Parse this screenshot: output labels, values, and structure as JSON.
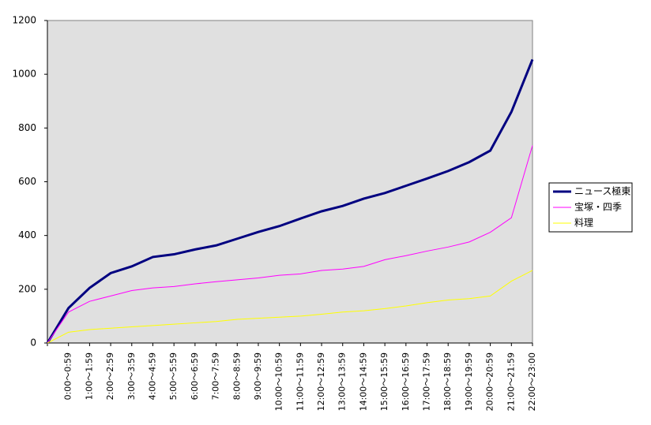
{
  "chart_data": {
    "type": "line",
    "categories": [
      null,
      "0:00～0:59",
      "1:00～1:59",
      "2:00～2:59",
      "3:00～3:59",
      "4:00～4:59",
      "5:00～5:59",
      "6:00～6:59",
      "7:00～7:59",
      "8:00～8:59",
      "9:00～9:59",
      "10:00～10:59",
      "11:00～11:59",
      "12:00～12:59",
      "13:00～13:59",
      "14:00～14:59",
      "15:00～15:59",
      "16:00～16:59",
      "17:00～17:59",
      "18:00～18:59",
      "19:00～19:59",
      "20:00～20:59",
      "21:00～21:59",
      "22:00～23:00"
    ],
    "series": [
      {
        "name": "ニュース極東",
        "color": "#000080",
        "values": [
          0,
          130,
          205,
          260,
          285,
          320,
          330,
          348,
          363,
          388,
          413,
          435,
          463,
          490,
          510,
          537,
          558,
          585,
          612,
          640,
          673,
          716,
          860,
          1055
        ]
      },
      {
        "name": "宝塚・四季",
        "color": "#ff00ff",
        "values": [
          0,
          115,
          155,
          175,
          195,
          205,
          210,
          220,
          228,
          235,
          242,
          252,
          257,
          270,
          275,
          285,
          310,
          325,
          342,
          357,
          376,
          412,
          466,
          735
        ]
      },
      {
        "name": "料理",
        "color": "#ffff00",
        "values": [
          0,
          40,
          50,
          55,
          60,
          65,
          70,
          75,
          80,
          88,
          92,
          96,
          100,
          107,
          115,
          120,
          128,
          138,
          150,
          160,
          165,
          175,
          230,
          270
        ]
      }
    ],
    "ylim": [
      0,
      1200
    ],
    "yticks": [
      0,
      200,
      400,
      600,
      800,
      1000,
      1200
    ],
    "grid": false,
    "legend": "right",
    "plot_background": "#e0e0e0"
  }
}
